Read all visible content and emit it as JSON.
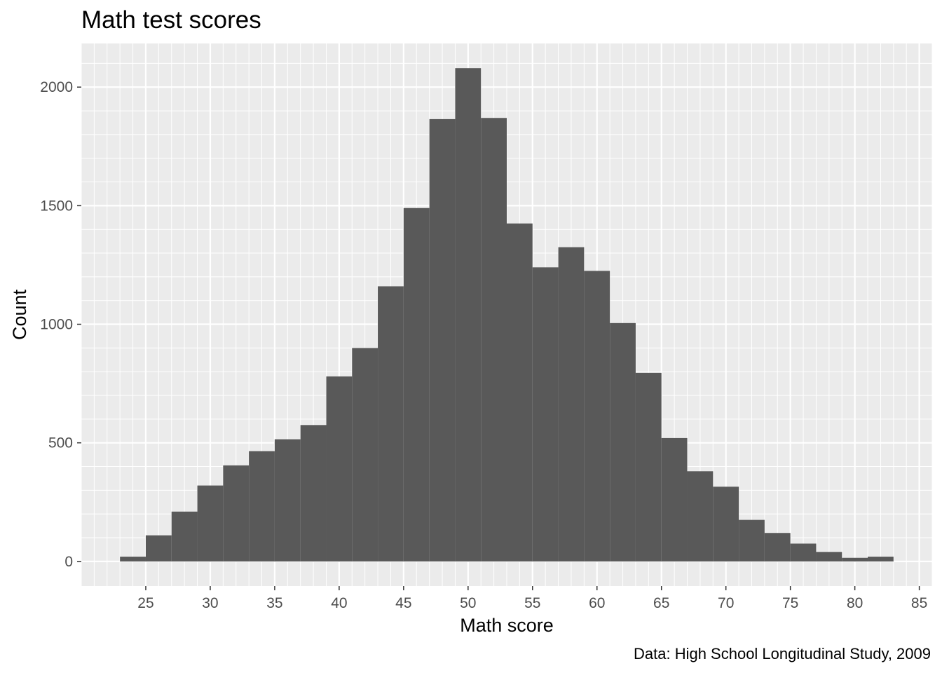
{
  "chart_data": {
    "type": "bar",
    "title": "Math test scores",
    "xlabel": "Math score",
    "ylabel": "Count",
    "caption": "Data: High School Longitudinal Study, 2009",
    "bin_width": 2,
    "bin_starts": [
      23,
      25,
      27,
      29,
      31,
      33,
      35,
      37,
      39,
      41,
      43,
      45,
      47,
      49,
      51,
      53,
      55,
      57,
      59,
      61,
      63,
      65,
      67,
      69,
      71,
      73,
      75,
      77,
      79,
      81
    ],
    "values": [
      20,
      110,
      210,
      320,
      405,
      465,
      515,
      575,
      780,
      900,
      1160,
      1490,
      1865,
      2080,
      1870,
      1425,
      1240,
      1325,
      1225,
      1005,
      795,
      520,
      380,
      315,
      175,
      120,
      75,
      40,
      15,
      20
    ],
    "x_ticks": [
      25,
      30,
      35,
      40,
      45,
      50,
      55,
      60,
      65,
      70,
      75,
      80,
      85
    ],
    "x_tick_labels": [
      "25",
      "30",
      "35",
      "40",
      "45",
      "50",
      "55",
      "60",
      "65",
      "70",
      "75",
      "80",
      "85"
    ],
    "y_ticks": [
      0,
      500,
      1000,
      1500,
      2000
    ],
    "y_tick_labels": [
      "0",
      "500",
      "1000",
      "1500",
      "2000"
    ],
    "xlim": [
      20,
      86
    ],
    "ylim": [
      -104,
      2184
    ],
    "grid": true,
    "colors": {
      "panel_background": "#ebebeb",
      "grid_line": "#ffffff",
      "bar_fill": "#595959",
      "tick_color": "#333333",
      "tick_label": "#4d4d4d"
    }
  }
}
